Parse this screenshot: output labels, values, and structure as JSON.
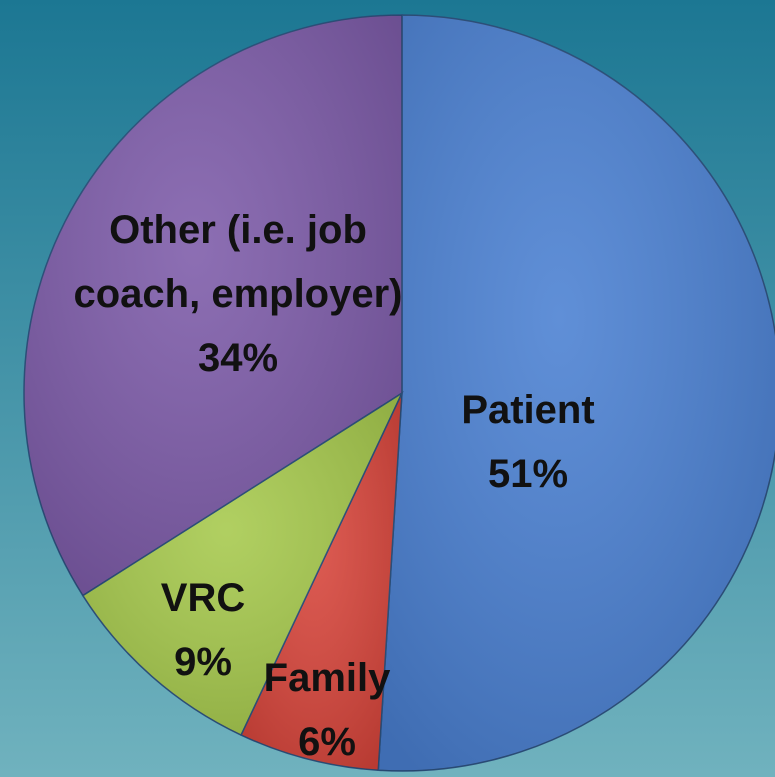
{
  "chart_data": {
    "type": "pie",
    "categories": [
      "Patient",
      "Family",
      "VRC",
      "Other (i.e. job coach, employer)"
    ],
    "values": [
      51,
      6,
      9,
      34
    ],
    "value_labels": [
      "51%",
      "6%",
      "9%",
      "34%"
    ],
    "colors": [
      "#4a80d2",
      "#d8453b",
      "#a6c94c",
      "#7d5ba9"
    ]
  }
}
